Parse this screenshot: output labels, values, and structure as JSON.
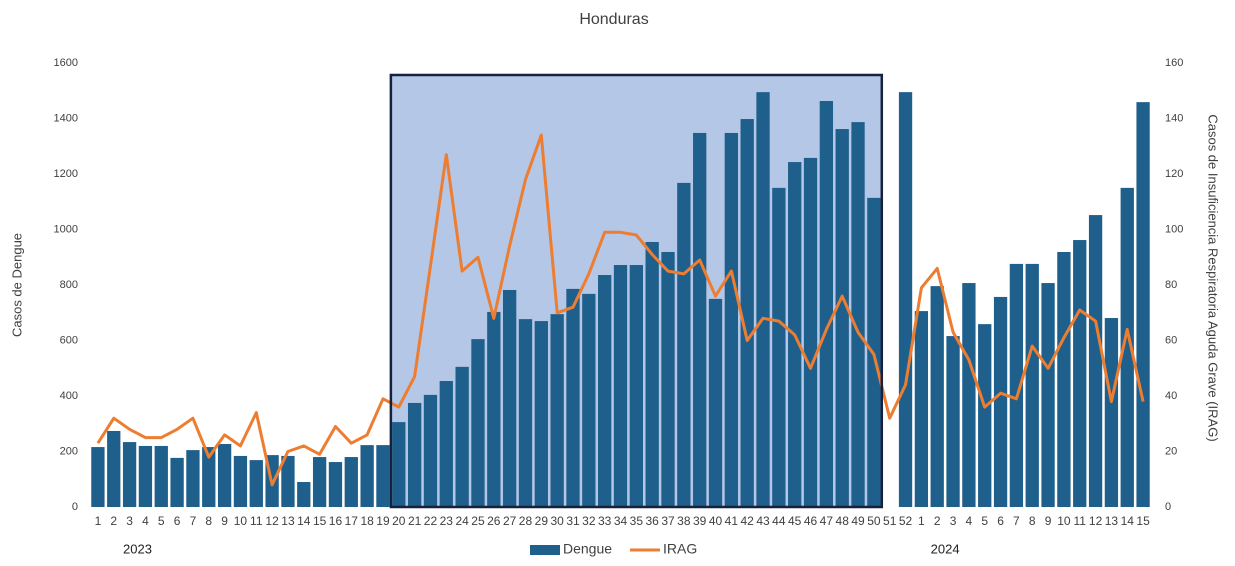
{
  "chart_data": {
    "type": "bar_line",
    "title": "Honduras",
    "y_label": "Casos de Dengue",
    "y2_label": "Casos de Insuficiencia Respiratoria Aguda Grave (IRAG)",
    "categories": [
      "1",
      "2",
      "3",
      "4",
      "5",
      "6",
      "7",
      "8",
      "9",
      "10",
      "11",
      "12",
      "13",
      "14",
      "15",
      "16",
      "17",
      "18",
      "19",
      "20",
      "21",
      "22",
      "23",
      "24",
      "25",
      "26",
      "27",
      "28",
      "29",
      "30",
      "31",
      "32",
      "33",
      "34",
      "35",
      "36",
      "37",
      "38",
      "39",
      "40",
      "41",
      "42",
      "43",
      "44",
      "45",
      "46",
      "47",
      "48",
      "49",
      "50",
      "51",
      "52",
      "1",
      "2",
      "3",
      "4",
      "5",
      "6",
      "7",
      "8",
      "9",
      "10",
      "11",
      "12",
      "13",
      "14",
      "15"
    ],
    "year_labels": [
      "2023",
      "2024"
    ],
    "series": [
      {
        "name": "Dengue",
        "type": "bar",
        "color": "#1f5f8b",
        "values": [
          216,
          274,
          234,
          220,
          220,
          177,
          205,
          216,
          227,
          184,
          169,
          187,
          184,
          90,
          180,
          162,
          180,
          223,
          223,
          306,
          375,
          404,
          454,
          505,
          605,
          703,
          782,
          677,
          670,
          695,
          786,
          768,
          836,
          872,
          872,
          955,
          919,
          1168,
          1348,
          750,
          1348,
          1398,
          1495,
          1150,
          1243,
          1258,
          1463,
          1362,
          1387,
          1114,
          null,
          1495,
          706,
          796,
          616,
          807,
          659,
          757,
          876,
          876,
          807,
          919,
          962,
          1052,
          681,
          1150,
          1459
        ]
      },
      {
        "name": "IRAG",
        "type": "line",
        "axis": "y2",
        "color": "#ed7d31",
        "values": [
          23,
          32,
          28,
          25,
          25,
          28,
          32,
          18,
          26,
          22,
          34,
          8,
          20,
          22,
          19,
          29,
          23,
          26,
          39,
          36,
          47,
          87,
          127,
          85,
          90,
          68,
          94,
          118,
          134,
          70,
          72,
          84,
          99,
          99,
          98,
          91,
          85,
          84,
          89,
          76,
          85,
          60,
          68,
          67,
          62,
          50,
          64,
          76,
          63,
          55,
          32,
          44,
          79,
          86,
          63,
          53,
          36,
          41,
          39,
          58,
          50,
          61,
          71,
          67,
          38,
          64,
          38
        ]
      }
    ],
    "highlight": {
      "from": 19,
      "to": 49,
      "color": "#b4c7e7"
    },
    "ylim": [
      0,
      1600
    ],
    "yticks": [
      0,
      200,
      400,
      600,
      800,
      1000,
      1200,
      1400,
      1600
    ],
    "y2lim": [
      0,
      160
    ],
    "y2ticks": [
      0,
      20,
      40,
      60,
      80,
      100,
      120,
      140,
      160
    ],
    "legend": "bottom"
  }
}
